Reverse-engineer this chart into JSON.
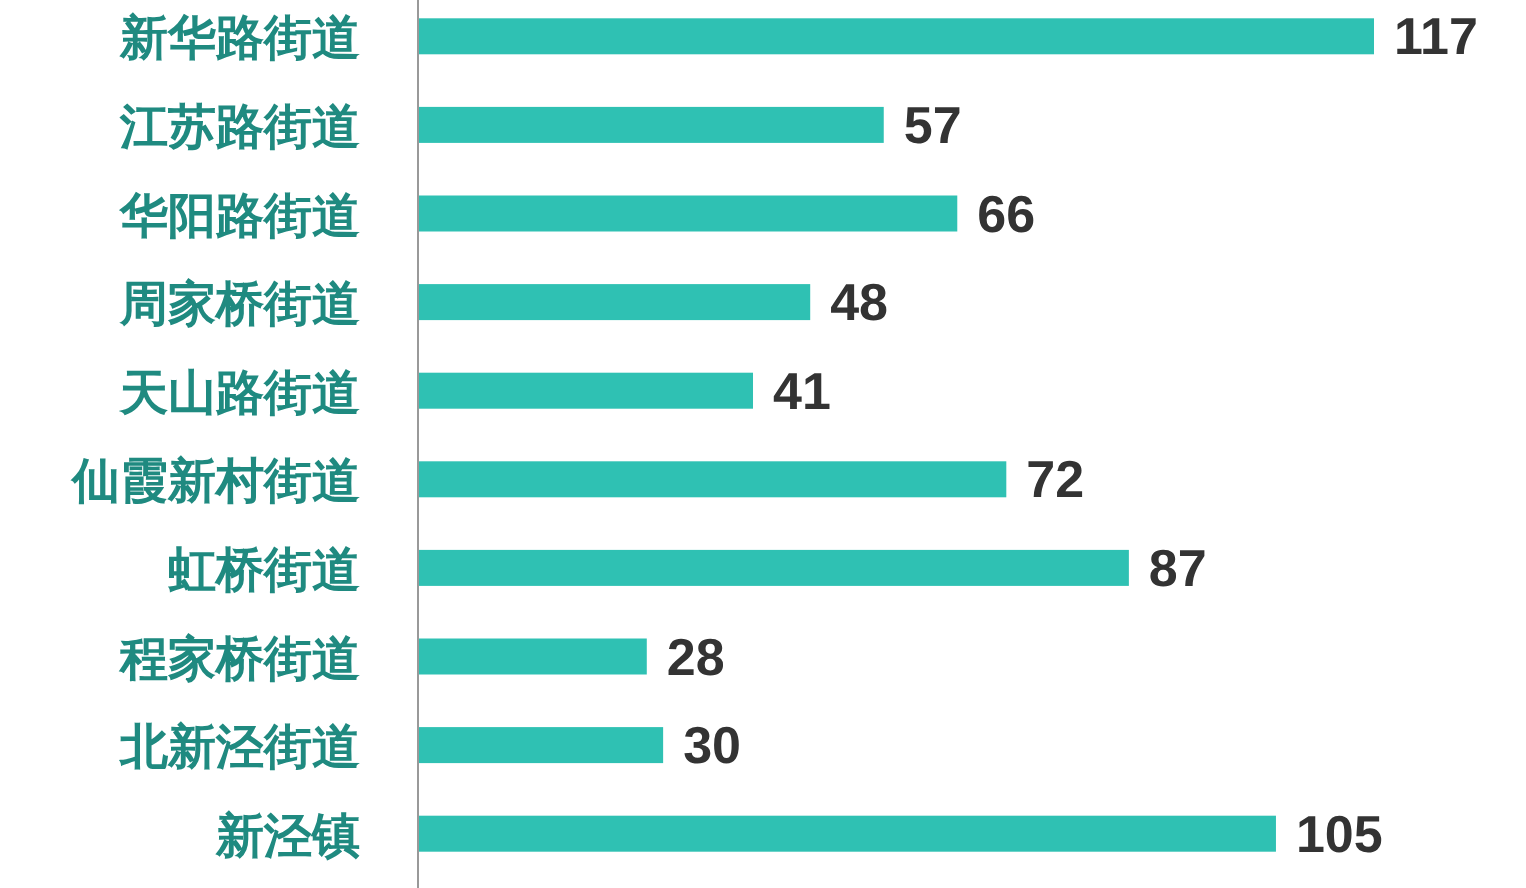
{
  "chart_data": {
    "type": "bar",
    "orientation": "horizontal",
    "categories": [
      "新华路街道",
      "江苏路街道",
      "华阳路街道",
      "周家桥街道",
      "天山路街道",
      "仙霞新村街道",
      "虹桥街道",
      "程家桥街道",
      "北新泾街道",
      "新泾镇"
    ],
    "values": [
      117,
      57,
      66,
      48,
      41,
      72,
      87,
      28,
      30,
      105
    ],
    "color": "#2fc1b3",
    "data_labels": true
  }
}
